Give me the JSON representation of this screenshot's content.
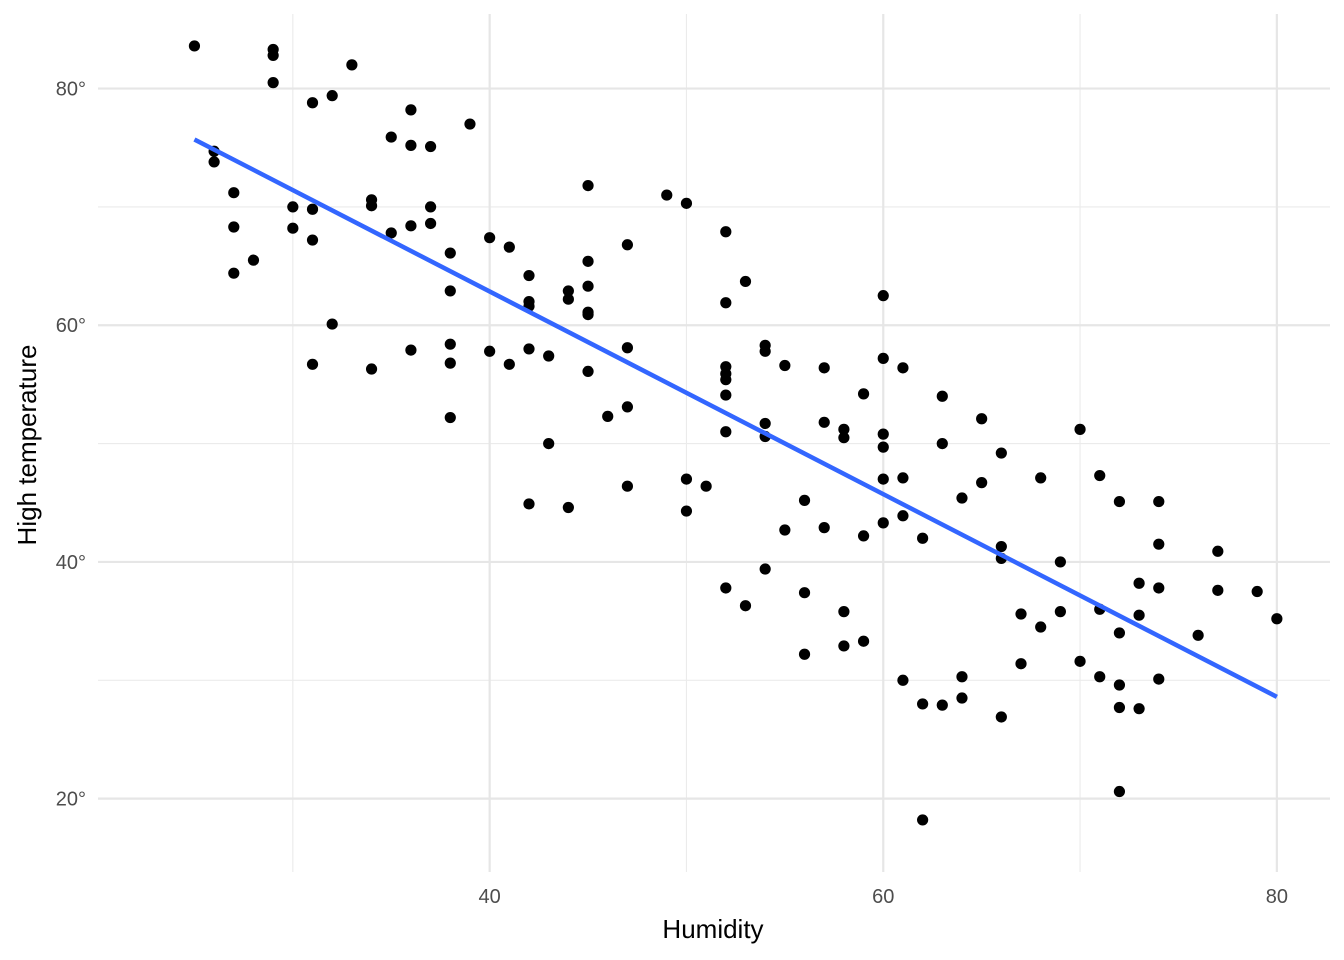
{
  "chart_data": {
    "type": "scatter",
    "title": "",
    "xlabel": "Humidity",
    "ylabel": "High temperature",
    "xlim": [
      20.1,
      82.7
    ],
    "ylim": [
      13.8,
      86.3
    ],
    "x_ticks": [
      40,
      60,
      80
    ],
    "x_tick_labels": [
      "40",
      "60",
      "80"
    ],
    "x_minor_gridlines": [
      30,
      50,
      70
    ],
    "y_ticks": [
      20,
      40,
      60,
      80
    ],
    "y_tick_labels": [
      "20°",
      "40°",
      "60°",
      "80°"
    ],
    "y_minor_gridlines": [
      30,
      50,
      70
    ],
    "grid": true,
    "point_color": "#000000",
    "fit_line": {
      "color": "#3366FF",
      "x": [
        25,
        80
      ],
      "y": [
        75.7,
        28.6
      ]
    },
    "points": [
      [
        25,
        83.6
      ],
      [
        26,
        74.7
      ],
      [
        26,
        73.8
      ],
      [
        27,
        71.2
      ],
      [
        27,
        68.3
      ],
      [
        27,
        64.4
      ],
      [
        28,
        65.5
      ],
      [
        29,
        83.3
      ],
      [
        29,
        82.8
      ],
      [
        29,
        80.5
      ],
      [
        30,
        70.0
      ],
      [
        30,
        68.2
      ],
      [
        31,
        78.8
      ],
      [
        31,
        69.8
      ],
      [
        31,
        67.2
      ],
      [
        31,
        56.7
      ],
      [
        32,
        79.4
      ],
      [
        32,
        60.1
      ],
      [
        33,
        82.0
      ],
      [
        34,
        70.6
      ],
      [
        34,
        70.1
      ],
      [
        34,
        56.3
      ],
      [
        35,
        75.9
      ],
      [
        35,
        67.8
      ],
      [
        36,
        78.2
      ],
      [
        36,
        75.2
      ],
      [
        36,
        68.4
      ],
      [
        36,
        57.9
      ],
      [
        37,
        75.1
      ],
      [
        37,
        70.0
      ],
      [
        37,
        68.6
      ],
      [
        38,
        66.1
      ],
      [
        38,
        62.9
      ],
      [
        38,
        58.4
      ],
      [
        38,
        56.8
      ],
      [
        38,
        52.2
      ],
      [
        39,
        77.0
      ],
      [
        40,
        67.4
      ],
      [
        40,
        57.8
      ],
      [
        41,
        66.6
      ],
      [
        41,
        56.7
      ],
      [
        42,
        64.2
      ],
      [
        42,
        62.0
      ],
      [
        42,
        61.6
      ],
      [
        42,
        58.0
      ],
      [
        42,
        44.9
      ],
      [
        43,
        57.4
      ],
      [
        43,
        50.0
      ],
      [
        44,
        62.9
      ],
      [
        44,
        62.2
      ],
      [
        44,
        44.6
      ],
      [
        45,
        71.8
      ],
      [
        45,
        65.4
      ],
      [
        45,
        63.3
      ],
      [
        45,
        61.1
      ],
      [
        45,
        60.9
      ],
      [
        45,
        56.1
      ],
      [
        46,
        52.3
      ],
      [
        47,
        66.8
      ],
      [
        47,
        58.1
      ],
      [
        47,
        53.1
      ],
      [
        47,
        46.4
      ],
      [
        49,
        71.0
      ],
      [
        50,
        70.3
      ],
      [
        50,
        47.0
      ],
      [
        50,
        44.3
      ],
      [
        51,
        46.4
      ],
      [
        52,
        67.9
      ],
      [
        52,
        61.9
      ],
      [
        52,
        56.5
      ],
      [
        52,
        55.9
      ],
      [
        52,
        55.4
      ],
      [
        52,
        54.1
      ],
      [
        52,
        51.0
      ],
      [
        52,
        37.8
      ],
      [
        53,
        63.7
      ],
      [
        53,
        36.3
      ],
      [
        54,
        58.3
      ],
      [
        54,
        57.8
      ],
      [
        54,
        51.7
      ],
      [
        54,
        50.6
      ],
      [
        54,
        39.4
      ],
      [
        55,
        56.6
      ],
      [
        55,
        42.7
      ],
      [
        56,
        45.2
      ],
      [
        56,
        37.4
      ],
      [
        56,
        32.2
      ],
      [
        57,
        56.4
      ],
      [
        57,
        51.8
      ],
      [
        57,
        42.9
      ],
      [
        58,
        51.2
      ],
      [
        58,
        50.5
      ],
      [
        58,
        35.8
      ],
      [
        58,
        32.9
      ],
      [
        59,
        54.2
      ],
      [
        59,
        42.2
      ],
      [
        59,
        33.3
      ],
      [
        60,
        62.5
      ],
      [
        60,
        57.2
      ],
      [
        60,
        50.8
      ],
      [
        60,
        49.7
      ],
      [
        60,
        47.0
      ],
      [
        60,
        43.3
      ],
      [
        61,
        56.4
      ],
      [
        61,
        47.1
      ],
      [
        61,
        43.9
      ],
      [
        61,
        30.0
      ],
      [
        62,
        42.0
      ],
      [
        62,
        28.0
      ],
      [
        62,
        18.2
      ],
      [
        63,
        54.0
      ],
      [
        63,
        50.0
      ],
      [
        63,
        27.9
      ],
      [
        64,
        45.4
      ],
      [
        64,
        30.3
      ],
      [
        64,
        28.5
      ],
      [
        65,
        52.1
      ],
      [
        65,
        46.7
      ],
      [
        66,
        49.2
      ],
      [
        66,
        41.3
      ],
      [
        66,
        40.3
      ],
      [
        66,
        26.9
      ],
      [
        67,
        35.6
      ],
      [
        67,
        31.4
      ],
      [
        68,
        47.1
      ],
      [
        68,
        34.5
      ],
      [
        69,
        40.0
      ],
      [
        69,
        35.8
      ],
      [
        70,
        51.2
      ],
      [
        70,
        31.6
      ],
      [
        71,
        47.3
      ],
      [
        71,
        36.0
      ],
      [
        71,
        30.3
      ],
      [
        72,
        45.1
      ],
      [
        72,
        34.0
      ],
      [
        72,
        29.6
      ],
      [
        72,
        27.7
      ],
      [
        72,
        20.6
      ],
      [
        73,
        38.2
      ],
      [
        73,
        35.5
      ],
      [
        73,
        27.6
      ],
      [
        74,
        45.1
      ],
      [
        74,
        41.5
      ],
      [
        74,
        37.8
      ],
      [
        74,
        30.1
      ],
      [
        76,
        33.8
      ],
      [
        77,
        40.9
      ],
      [
        77,
        37.6
      ],
      [
        79,
        37.5
      ],
      [
        80,
        35.2
      ]
    ]
  }
}
